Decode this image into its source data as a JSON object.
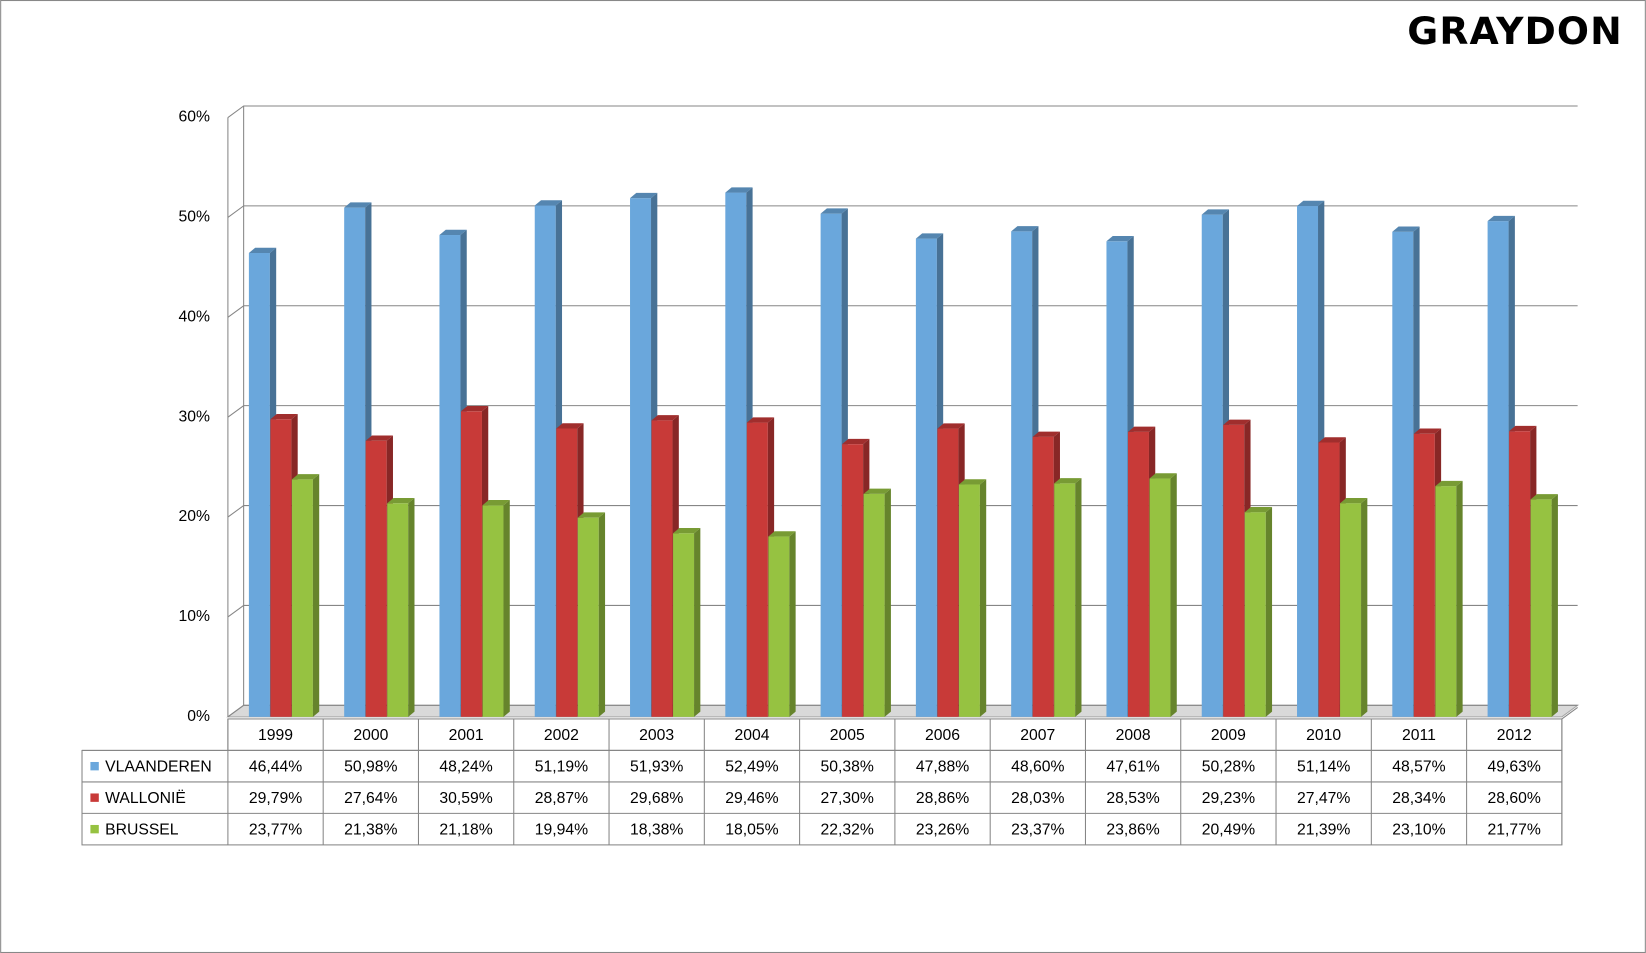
{
  "brand": "GRAYDON",
  "chart_data": {
    "type": "bar3d",
    "categories": [
      "1999",
      "2000",
      "2001",
      "2002",
      "2003",
      "2004",
      "2005",
      "2006",
      "2007",
      "2008",
      "2009",
      "2010",
      "2011",
      "2012"
    ],
    "series": [
      {
        "name": "VLAANDEREN",
        "color": "#6aa7dc",
        "values": [
          46.44,
          50.98,
          48.24,
          51.19,
          51.93,
          52.49,
          50.38,
          47.88,
          48.6,
          47.61,
          50.28,
          51.14,
          48.57,
          49.63
        ],
        "value_labels": [
          "46,44%",
          "50,98%",
          "48,24%",
          "51,19%",
          "51,93%",
          "52,49%",
          "50,38%",
          "47,88%",
          "48,60%",
          "47,61%",
          "50,28%",
          "51,14%",
          "48,57%",
          "49,63%"
        ]
      },
      {
        "name": "WALLONIË",
        "color": "#c83a38",
        "values": [
          29.79,
          27.64,
          30.59,
          28.87,
          29.68,
          29.46,
          27.3,
          28.86,
          28.03,
          28.53,
          29.23,
          27.47,
          28.34,
          28.6
        ],
        "value_labels": [
          "29,79%",
          "27,64%",
          "30,59%",
          "28,87%",
          "29,68%",
          "29,46%",
          "27,30%",
          "28,86%",
          "28,03%",
          "28,53%",
          "29,23%",
          "27,47%",
          "28,34%",
          "28,60%"
        ]
      },
      {
        "name": "BRUSSEL",
        "color": "#96c241",
        "values": [
          23.77,
          21.38,
          21.18,
          19.94,
          18.38,
          18.05,
          22.32,
          23.26,
          23.37,
          23.86,
          20.49,
          21.39,
          23.1,
          21.77
        ],
        "value_labels": [
          "23,77%",
          "21,38%",
          "21,18%",
          "19,94%",
          "18,38%",
          "18,05%",
          "22,32%",
          "23,26%",
          "23,37%",
          "23,86%",
          "20,49%",
          "21,39%",
          "23,10%",
          "21,77%"
        ]
      }
    ],
    "ylim": [
      0,
      60
    ],
    "yticks": [
      {
        "value": 0,
        "label": "0%"
      },
      {
        "value": 10,
        "label": "10%"
      },
      {
        "value": 20,
        "label": "20%"
      },
      {
        "value": 30,
        "label": "30%"
      },
      {
        "value": 40,
        "label": "40%"
      },
      {
        "value": 50,
        "label": "50%"
      },
      {
        "value": 60,
        "label": "60%"
      }
    ],
    "grid": true
  }
}
